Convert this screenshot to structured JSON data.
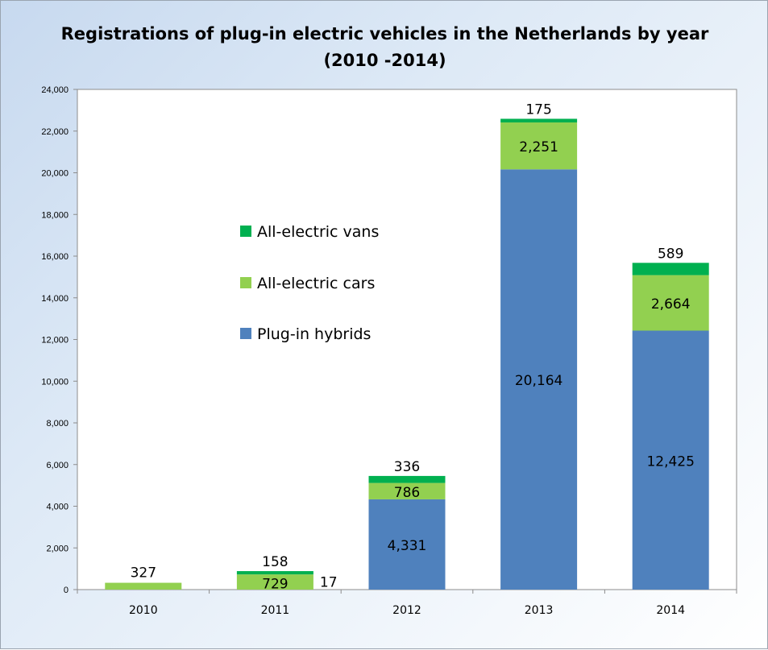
{
  "chart_data": {
    "type": "bar",
    "stacked": true,
    "title": [
      "Registrations of plug-in electric vehicles in the Netherlands by year",
      "(2010 -2014)"
    ],
    "xlabel": "",
    "ylabel": "",
    "categories": [
      "2010",
      "2011",
      "2012",
      "2013",
      "2014"
    ],
    "ylim": [
      0,
      24000
    ],
    "yticks": [
      0,
      2000,
      4000,
      6000,
      8000,
      10000,
      12000,
      14000,
      16000,
      18000,
      20000,
      22000,
      24000
    ],
    "ytick_labels": [
      "0",
      "2,000",
      "4,000",
      "6,000",
      "8,000",
      "10,000",
      "12,000",
      "14,000",
      "16,000",
      "18,000",
      "20,000",
      "22,000",
      "24,000"
    ],
    "grid": false,
    "legend_position": "inside-left",
    "series": [
      {
        "name": "Plug-in hybrids",
        "color": "#4f81bd",
        "values": [
          0,
          0,
          4331,
          20164,
          12425
        ],
        "labels": [
          "",
          "",
          "4,331",
          "20,164",
          "12,425"
        ]
      },
      {
        "name": "All-electric cars",
        "color": "#92d050",
        "values": [
          327,
          729,
          786,
          2251,
          2664
        ],
        "labels": [
          "327",
          "729",
          "786",
          "2,251",
          "2,664"
        ]
      },
      {
        "name": "All-electric vans",
        "color": "#00b050",
        "values": [
          0,
          158,
          336,
          175,
          589
        ],
        "labels": [
          "",
          "158",
          "336",
          "175",
          "589"
        ]
      }
    ],
    "annotations": [
      {
        "category": "2011",
        "text": "17"
      }
    ],
    "legend": [
      "All-electric vans",
      "All-electric cars",
      "Plug-in hybrids"
    ]
  }
}
